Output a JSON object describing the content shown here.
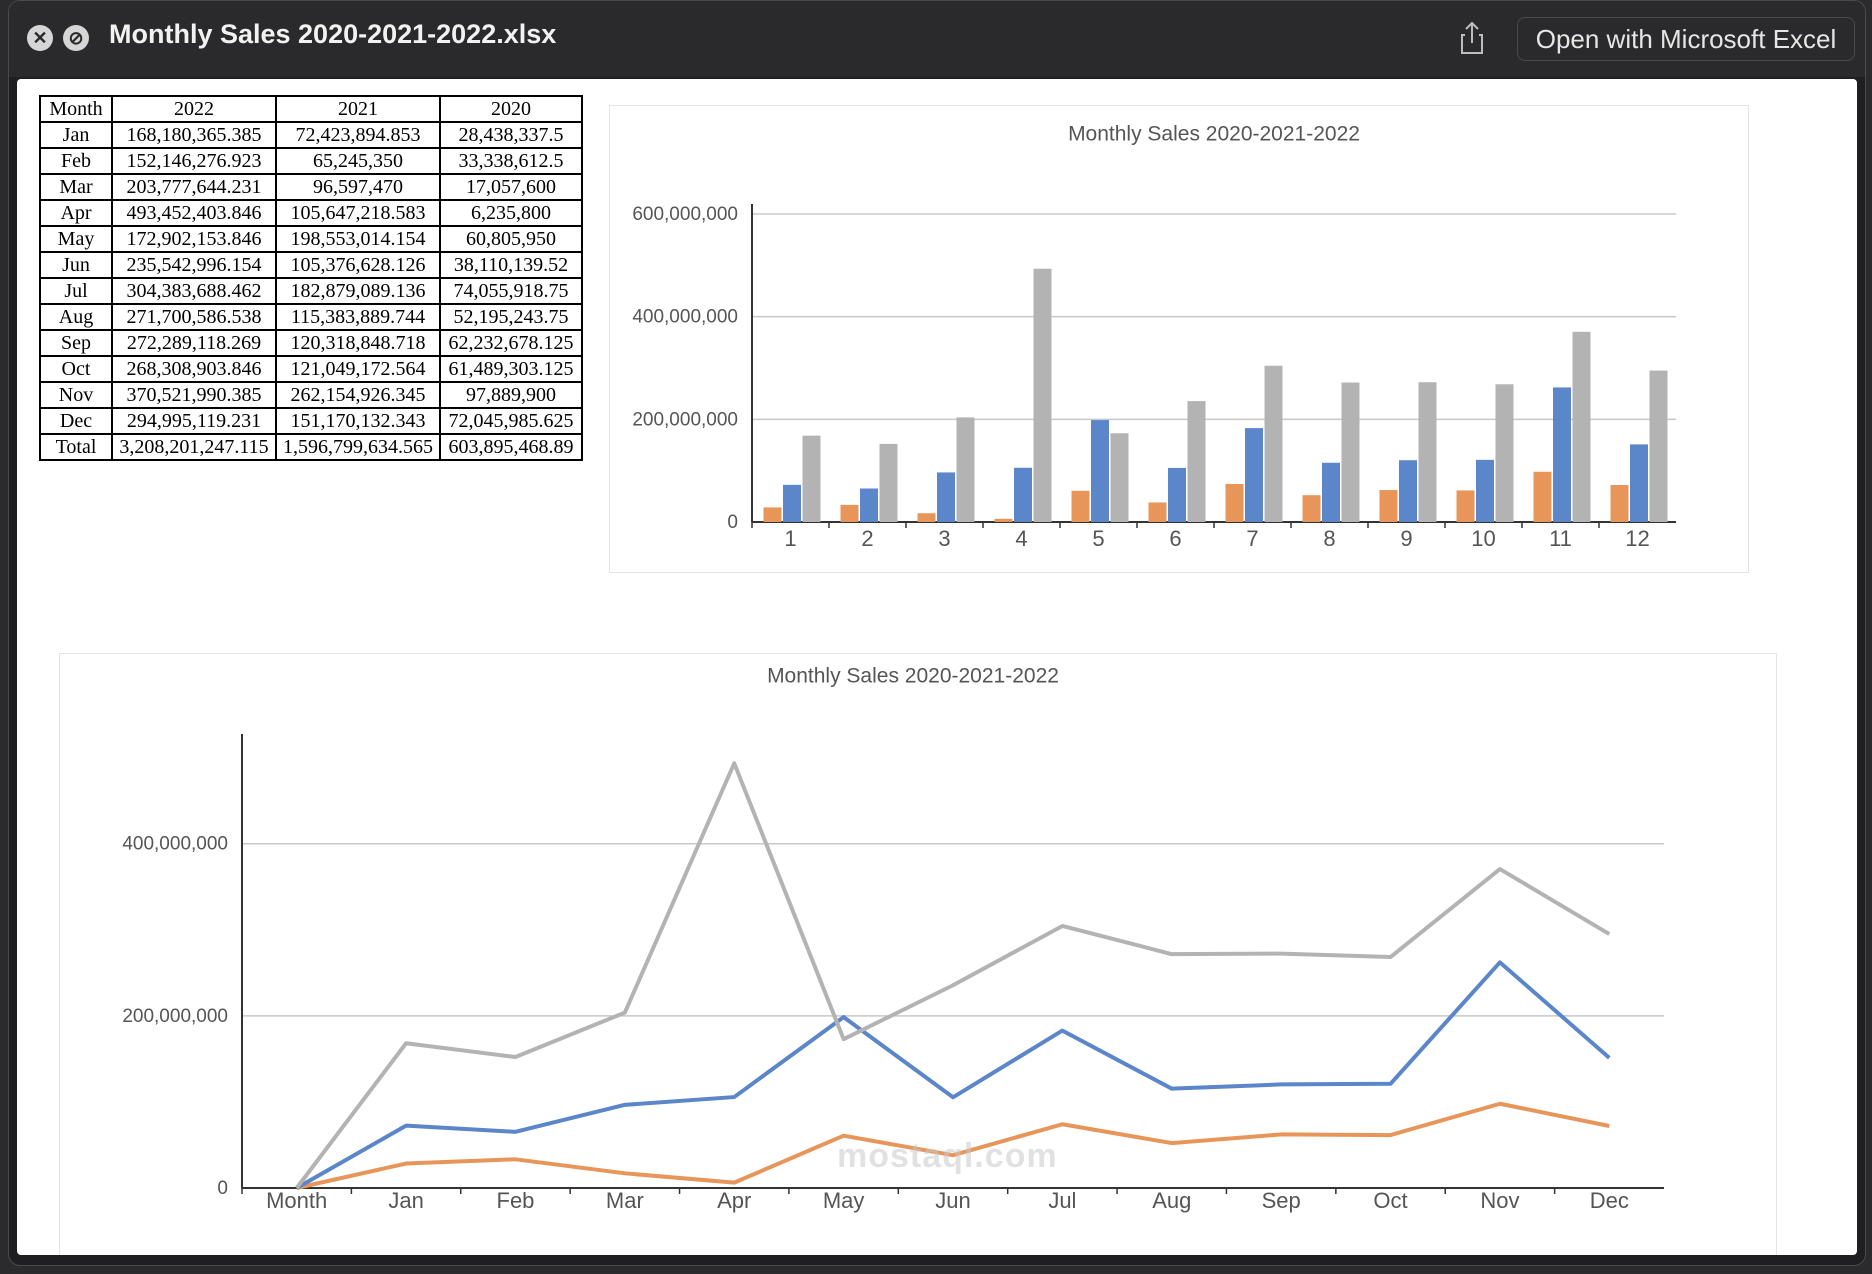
{
  "window": {
    "title": "Monthly Sales 2020-2021-2022.xlsx",
    "open_button": "Open with Microsoft Excel",
    "close_icon": "close-icon",
    "minimize_icon": "minimize-icon",
    "share_icon": "share-icon"
  },
  "table": {
    "headers": [
      "Month",
      "2022",
      "2021",
      "2020"
    ],
    "rows": [
      [
        "Jan",
        "168,180,365.385",
        "72,423,894.853",
        "28,438,337.5"
      ],
      [
        "Feb",
        "152,146,276.923",
        "65,245,350",
        "33,338,612.5"
      ],
      [
        "Mar",
        "203,777,644.231",
        "96,597,470",
        "17,057,600"
      ],
      [
        "Apr",
        "493,452,403.846",
        "105,647,218.583",
        "6,235,800"
      ],
      [
        "May",
        "172,902,153.846",
        "198,553,014.154",
        "60,805,950"
      ],
      [
        "Jun",
        "235,542,996.154",
        "105,376,628.126",
        "38,110,139.52"
      ],
      [
        "Jul",
        "304,383,688.462",
        "182,879,089.136",
        "74,055,918.75"
      ],
      [
        "Aug",
        "271,700,586.538",
        "115,383,889.744",
        "52,195,243.75"
      ],
      [
        "Sep",
        "272,289,118.269",
        "120,318,848.718",
        "62,232,678.125"
      ],
      [
        "Oct",
        "268,308,903.846",
        "121,049,172.564",
        "61,489,303.125"
      ],
      [
        "Nov",
        "370,521,990.385",
        "262,154,926.345",
        "97,889,900"
      ],
      [
        "Dec",
        "294,995,119.231",
        "151,170,132.343",
        "72,045,985.625"
      ],
      [
        "Total",
        "3,208,201,247.115",
        "1,596,799,634.565",
        "603,895,468.89"
      ]
    ]
  },
  "watermark": "mostaql.com",
  "colors": {
    "s2020": "#e8955a",
    "s2021": "#5b86c9",
    "s2022": "#b3b3b3"
  },
  "chart_data": [
    {
      "type": "bar",
      "title": "Monthly Sales 2020-2021-2022",
      "categories": [
        "1",
        "2",
        "3",
        "4",
        "5",
        "6",
        "7",
        "8",
        "9",
        "10",
        "11",
        "12"
      ],
      "ylim": [
        0,
        600000000
      ],
      "yticks": [
        0,
        200000000,
        400000000,
        600000000
      ],
      "ytick_labels": [
        "0",
        "200,000,000",
        "400,000,000",
        "600,000,000"
      ],
      "grid": true,
      "series": [
        {
          "color": "#e8955a",
          "values": [
            28438337.5,
            33338612.5,
            17057600,
            6235800,
            60805950,
            38110139.52,
            74055918.75,
            52195243.75,
            62232678.125,
            61489303.125,
            97889900,
            72045985.625
          ]
        },
        {
          "color": "#5b86c9",
          "values": [
            72423894.853,
            65245350,
            96597470,
            105647218.583,
            198553014.154,
            105376628.126,
            182879089.136,
            115383889.744,
            120318848.718,
            121049172.564,
            262154926.345,
            151170132.343
          ]
        },
        {
          "color": "#b3b3b3",
          "values": [
            168180365.385,
            152146276.923,
            203777644.231,
            493452403.846,
            172902153.846,
            235542996.154,
            304383688.462,
            271700586.538,
            272289118.269,
            268308903.846,
            370521990.385,
            294995119.231
          ]
        }
      ]
    },
    {
      "type": "line",
      "title": "Monthly Sales 2020-2021-2022",
      "categories": [
        "Month",
        "Jan",
        "Feb",
        "Mar",
        "Apr",
        "May",
        "Jun",
        "Jul",
        "Aug",
        "Sep",
        "Oct",
        "Nov",
        "Dec"
      ],
      "ylim": [
        0,
        600000000
      ],
      "yticks": [
        0,
        200000000,
        400000000
      ],
      "ytick_labels": [
        "0",
        "200,000,000",
        "400,000,000"
      ],
      "grid": true,
      "series": [
        {
          "color": "#e8955a",
          "values": [
            0,
            28438337.5,
            33338612.5,
            17057600,
            6235800,
            60805950,
            38110139.52,
            74055918.75,
            52195243.75,
            62232678.125,
            61489303.125,
            97889900,
            72045985.625
          ]
        },
        {
          "color": "#5b86c9",
          "values": [
            0,
            72423894.853,
            65245350,
            96597470,
            105647218.583,
            198553014.154,
            105376628.126,
            182879089.136,
            115383889.744,
            120318848.718,
            121049172.564,
            262154926.345,
            151170132.343
          ]
        },
        {
          "color": "#b3b3b3",
          "values": [
            0,
            168180365.385,
            152146276.923,
            203777644.231,
            493452403.846,
            172902153.846,
            235542996.154,
            304383688.462,
            271700586.538,
            272289118.269,
            268308903.846,
            370521990.385,
            294995119.231
          ]
        }
      ]
    }
  ]
}
